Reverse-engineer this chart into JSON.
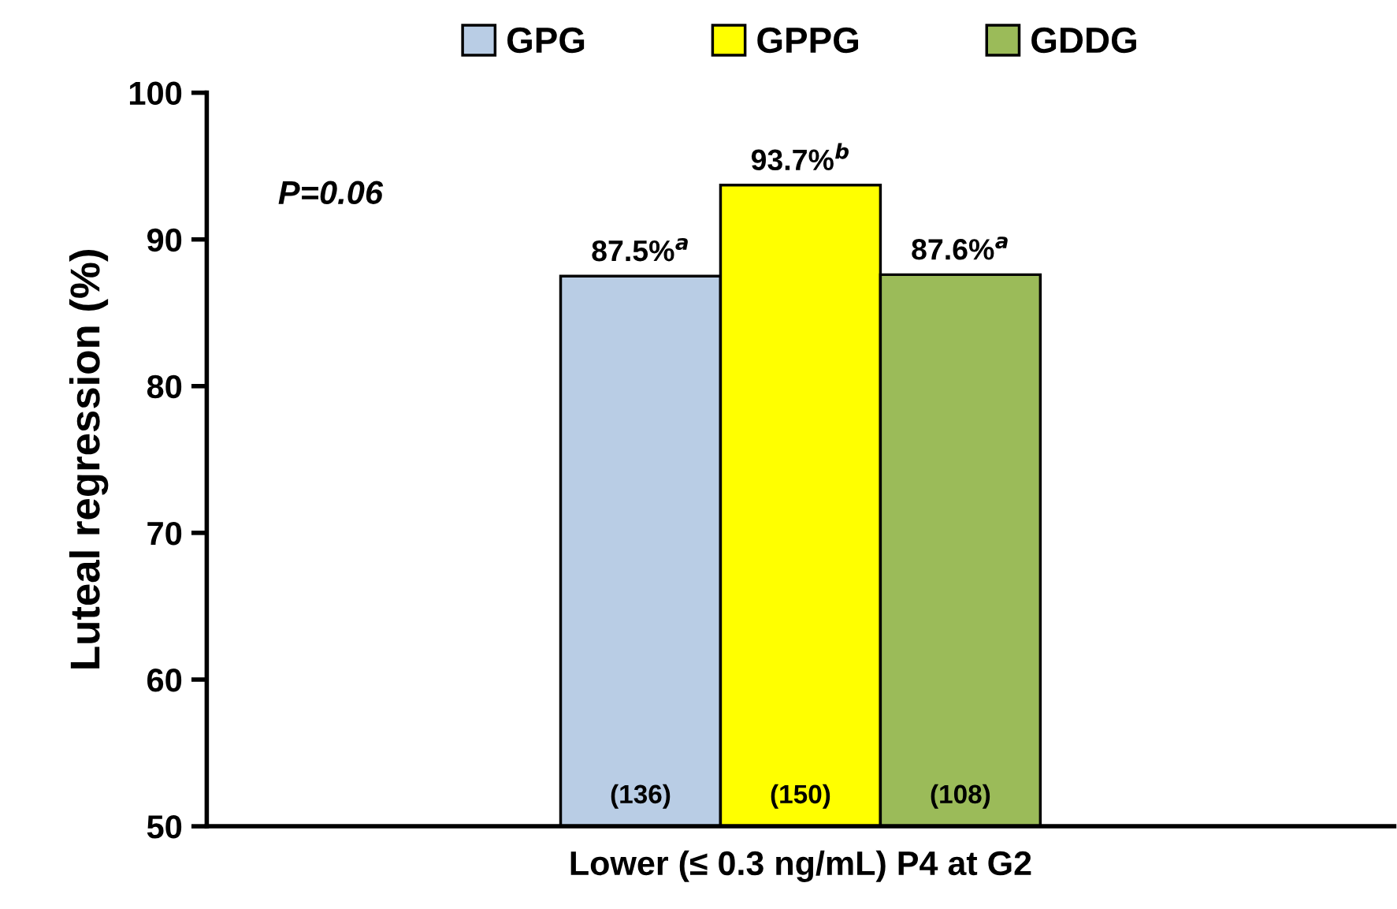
{
  "chart_data": {
    "type": "bar",
    "ylabel": "Luteal regression (%)",
    "categories": [
      "Lower (≤ 0.3 ng/mL) P4 at G2"
    ],
    "series": [
      {
        "name": "GPG",
        "color": "#b9cde5",
        "values": [
          87.5
        ],
        "value_labels": [
          "87.5%$^{a}$"
        ]
      },
      {
        "name": "GPPG",
        "color": "#ffff00",
        "values": [
          93.7
        ],
        "value_labels": [
          "93.7%$^{b}$"
        ]
      },
      {
        "name": "GDDG",
        "color": "#9bbb59",
        "values": [
          87.6
        ],
        "value_labels": [
          "87.6%$^{a}$"
        ]
      }
    ],
    "annotations": [
      "P=0.06",
      "(136)",
      "(150)",
      "(108)"
    ],
    "ylim": [
      50,
      100
    ],
    "yticks": [
      50,
      60,
      70,
      80,
      90,
      100
    ],
    "grid": false,
    "legend": "top"
  }
}
